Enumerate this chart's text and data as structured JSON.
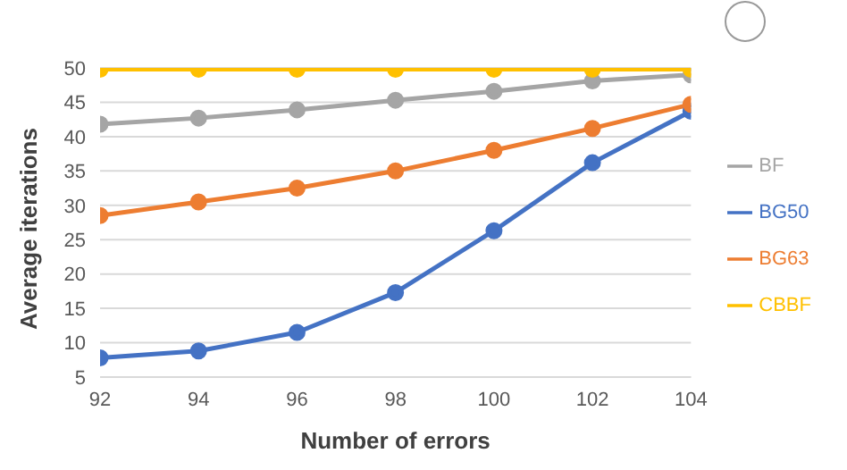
{
  "chart_data": {
    "type": "line",
    "xlabel": "Number of errors",
    "ylabel": "Average iterations",
    "x": [
      92,
      94,
      96,
      98,
      100,
      102,
      104
    ],
    "series": [
      {
        "name": "BG50",
        "color": "#4472c4",
        "values": [
          7.8,
          8.8,
          11.5,
          17.3,
          26.3,
          36.2,
          43.7
        ]
      },
      {
        "name": "BG63",
        "color": "#ed7d31",
        "values": [
          28.5,
          30.5,
          32.5,
          35,
          38,
          41.2,
          44.7
        ]
      },
      {
        "name": "BF",
        "color": "#a5a5a5",
        "values": [
          41.8,
          42.7,
          43.9,
          45.3,
          46.6,
          48.1,
          49
        ]
      },
      {
        "name": "CBBF",
        "color": "#ffc000",
        "values": [
          49.8,
          49.8,
          49.8,
          49.8,
          49.8,
          49.8,
          49.8
        ]
      }
    ],
    "xlim": [
      92,
      104
    ],
    "xticks": [
      92,
      94,
      96,
      98,
      100,
      102,
      104
    ],
    "ylim": [
      5,
      50
    ],
    "yticks": [
      5,
      10,
      15,
      20,
      25,
      30,
      35,
      40,
      45,
      50
    ],
    "grid": "y",
    "legend": "right",
    "marker": "circle",
    "line_style": "solid"
  }
}
